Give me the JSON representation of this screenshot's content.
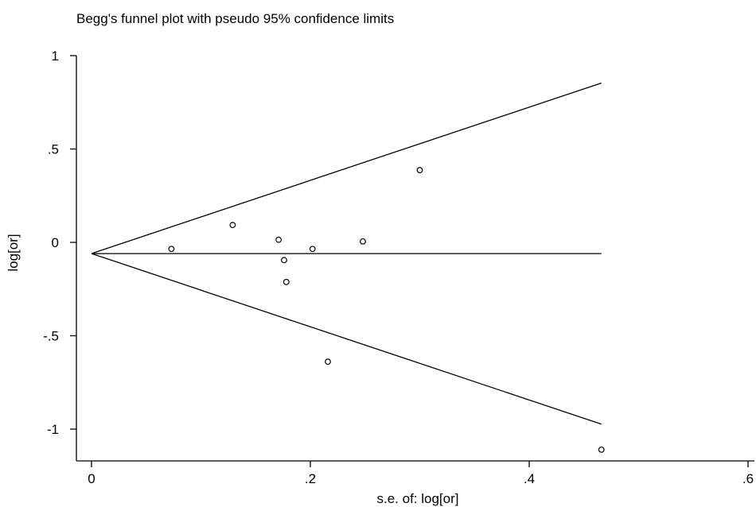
{
  "chart_data": {
    "type": "scatter",
    "title": "Begg's funnel plot with pseudo 95% confidence limits",
    "xlabel": "s.e. of: log[or]",
    "ylabel": "log[or]",
    "xlim": [
      0,
      0.6
    ],
    "ylim": [
      -1.2,
      1.1
    ],
    "x_ticks": [
      {
        "value": 0,
        "label": "0"
      },
      {
        "value": 0.2,
        "label": ".2"
      },
      {
        "value": 0.4,
        "label": ".4"
      },
      {
        "value": 0.6,
        "label": ".6"
      }
    ],
    "y_ticks": [
      {
        "value": 1,
        "label": "1"
      },
      {
        "value": 0.5,
        "label": ".5"
      },
      {
        "value": 0,
        "label": "0"
      },
      {
        "value": -0.5,
        "label": "-.5"
      },
      {
        "value": -1,
        "label": "-1"
      }
    ],
    "points": [
      {
        "x": 0.073,
        "y": -0.035
      },
      {
        "x": 0.129,
        "y": 0.093
      },
      {
        "x": 0.171,
        "y": 0.014
      },
      {
        "x": 0.176,
        "y": -0.095
      },
      {
        "x": 0.178,
        "y": -0.212
      },
      {
        "x": 0.202,
        "y": -0.035
      },
      {
        "x": 0.216,
        "y": -0.639
      },
      {
        "x": 0.248,
        "y": 0.005
      },
      {
        "x": 0.3,
        "y": 0.387
      },
      {
        "x": 0.466,
        "y": -1.11
      }
    ],
    "pooled_estimate": -0.06,
    "funnel_max_se": 0.466,
    "grid": false,
    "legend": "none"
  }
}
